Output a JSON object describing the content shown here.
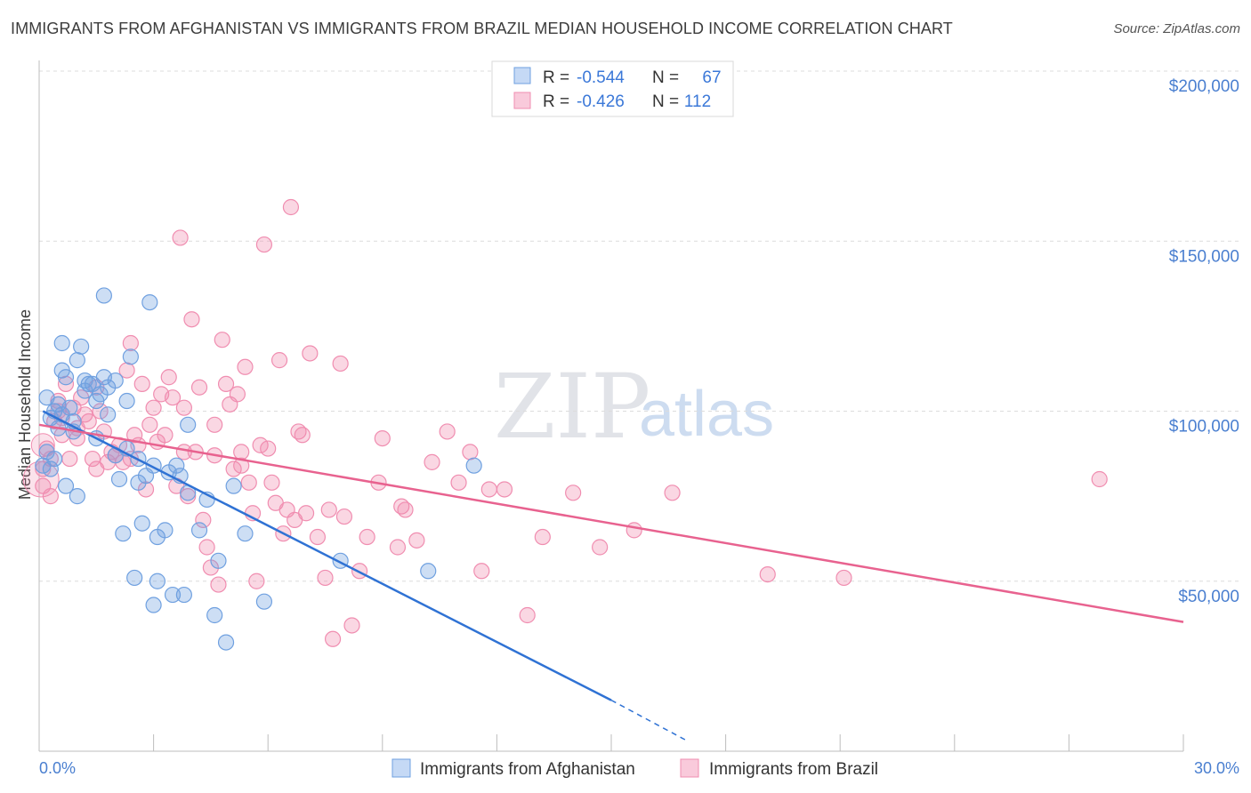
{
  "title": "IMMIGRANTS FROM AFGHANISTAN VS IMMIGRANTS FROM BRAZIL MEDIAN HOUSEHOLD INCOME CORRELATION CHART",
  "source": "Source: ZipAtlas.com",
  "watermark": {
    "zip": "ZIP",
    "atlas": "atlas"
  },
  "legend": {
    "rows": [
      {
        "r_label": "R = ",
        "r_value": "-0.544",
        "n_label": "N = ",
        "n_value": "67"
      },
      {
        "r_label": "R = ",
        "r_value": "-0.426",
        "n_label": "N = ",
        "n_value": "112"
      }
    ]
  },
  "colors": {
    "afghanistan": "#6fa0e0",
    "afghanistan_line": "#2f72d4",
    "brazil": "#f08db0",
    "brazil_line": "#e8628f",
    "tick": "#4a7fd0"
  },
  "chart_data": {
    "type": "scatter",
    "title": "IMMIGRANTS FROM AFGHANISTAN VS IMMIGRANTS FROM BRAZIL MEDIAN HOUSEHOLD INCOME CORRELATION CHART",
    "xlabel": "",
    "ylabel": "Median Household Income",
    "xlim": [
      0,
      30
    ],
    "ylim": [
      0,
      200000
    ],
    "x_tick_labels": [
      "0.0%",
      "30.0%"
    ],
    "y_ticks": [
      50000,
      100000,
      150000,
      200000
    ],
    "y_tick_labels": [
      "$50,000",
      "$100,000",
      "$150,000",
      "$200,000"
    ],
    "grid": true,
    "legend_position": "top-center",
    "series": [
      {
        "name": "Immigrants from Afghanistan",
        "r": -0.544,
        "n": 67,
        "trend": {
          "x": [
            0.1,
            15.0
          ],
          "y": [
            100000,
            15000
          ],
          "dashed_to": [
            17.0,
            3000
          ]
        },
        "points": [
          [
            0.2,
            104
          ],
          [
            0.3,
            98
          ],
          [
            0.3,
            83
          ],
          [
            0.4,
            100
          ],
          [
            0.5,
            95
          ],
          [
            0.6,
            112
          ],
          [
            0.6,
            120
          ],
          [
            0.7,
            110
          ],
          [
            0.7,
            78
          ],
          [
            0.8,
            101
          ],
          [
            0.9,
            94
          ],
          [
            1.0,
            115
          ],
          [
            1.0,
            75
          ],
          [
            1.1,
            119
          ],
          [
            1.2,
            106
          ],
          [
            1.3,
            108
          ],
          [
            1.4,
            108
          ],
          [
            1.5,
            103
          ],
          [
            1.6,
            105
          ],
          [
            1.7,
            134
          ],
          [
            1.7,
            110
          ],
          [
            1.8,
            107
          ],
          [
            2.0,
            87
          ],
          [
            2.1,
            80
          ],
          [
            2.2,
            64
          ],
          [
            2.3,
            103
          ],
          [
            2.4,
            116
          ],
          [
            2.5,
            51
          ],
          [
            2.6,
            79
          ],
          [
            2.7,
            67
          ],
          [
            2.8,
            81
          ],
          [
            2.9,
            132
          ],
          [
            3.0,
            43
          ],
          [
            3.0,
            84
          ],
          [
            3.1,
            50
          ],
          [
            3.1,
            63
          ],
          [
            3.3,
            65
          ],
          [
            3.4,
            82
          ],
          [
            3.5,
            46
          ],
          [
            3.6,
            84
          ],
          [
            3.7,
            81
          ],
          [
            3.8,
            46
          ],
          [
            3.9,
            76
          ],
          [
            3.9,
            96
          ],
          [
            4.2,
            65
          ],
          [
            4.4,
            74
          ],
          [
            4.6,
            40
          ],
          [
            4.7,
            56
          ],
          [
            4.9,
            32
          ],
          [
            5.1,
            78
          ],
          [
            5.4,
            64
          ],
          [
            5.9,
            44
          ],
          [
            7.9,
            56
          ],
          [
            10.2,
            53
          ],
          [
            11.4,
            84
          ],
          [
            0.2,
            88
          ],
          [
            0.4,
            86
          ],
          [
            0.6,
            99
          ],
          [
            0.9,
            97
          ],
          [
            1.2,
            109
          ],
          [
            1.5,
            92
          ],
          [
            2.0,
            109
          ],
          [
            2.3,
            89
          ],
          [
            1.8,
            99
          ],
          [
            0.5,
            102
          ],
          [
            0.1,
            84
          ],
          [
            2.6,
            86
          ]
        ]
      },
      {
        "name": "Immigrants from Brazil",
        "r": -0.426,
        "n": 112,
        "trend": {
          "x": [
            0.0,
            30.0
          ],
          "y": [
            96000,
            38000
          ]
        },
        "points": [
          [
            0.1,
            78
          ],
          [
            0.2,
            89
          ],
          [
            0.3,
            86
          ],
          [
            0.4,
            97
          ],
          [
            0.5,
            103
          ],
          [
            0.5,
            100
          ],
          [
            0.6,
            98
          ],
          [
            0.7,
            108
          ],
          [
            0.8,
            86
          ],
          [
            0.9,
            101
          ],
          [
            1.0,
            92
          ],
          [
            1.1,
            104
          ],
          [
            1.2,
            99
          ],
          [
            1.3,
            97
          ],
          [
            1.4,
            86
          ],
          [
            1.5,
            107
          ],
          [
            1.6,
            100
          ],
          [
            1.7,
            94
          ],
          [
            1.8,
            85
          ],
          [
            1.9,
            88
          ],
          [
            2.0,
            87
          ],
          [
            2.1,
            90
          ],
          [
            2.2,
            85
          ],
          [
            2.3,
            112
          ],
          [
            2.4,
            86
          ],
          [
            2.5,
            93
          ],
          [
            2.6,
            90
          ],
          [
            2.7,
            108
          ],
          [
            2.8,
            77
          ],
          [
            2.9,
            96
          ],
          [
            3.0,
            101
          ],
          [
            3.1,
            91
          ],
          [
            3.2,
            105
          ],
          [
            3.3,
            93
          ],
          [
            3.4,
            110
          ],
          [
            3.5,
            104
          ],
          [
            3.6,
            78
          ],
          [
            3.7,
            151
          ],
          [
            3.8,
            101
          ],
          [
            3.9,
            75
          ],
          [
            4.0,
            127
          ],
          [
            4.1,
            88
          ],
          [
            4.2,
            107
          ],
          [
            4.3,
            68
          ],
          [
            4.4,
            60
          ],
          [
            4.5,
            54
          ],
          [
            4.6,
            96
          ],
          [
            4.7,
            49
          ],
          [
            4.8,
            121
          ],
          [
            4.9,
            108
          ],
          [
            5.0,
            102
          ],
          [
            5.1,
            83
          ],
          [
            5.2,
            105
          ],
          [
            5.3,
            88
          ],
          [
            5.4,
            113
          ],
          [
            5.5,
            79
          ],
          [
            5.6,
            70
          ],
          [
            5.7,
            50
          ],
          [
            5.8,
            90
          ],
          [
            5.9,
            149
          ],
          [
            6.0,
            89
          ],
          [
            6.1,
            79
          ],
          [
            6.2,
            73
          ],
          [
            6.3,
            115
          ],
          [
            6.4,
            64
          ],
          [
            6.5,
            71
          ],
          [
            6.6,
            160
          ],
          [
            6.7,
            68
          ],
          [
            6.8,
            94
          ],
          [
            6.9,
            93
          ],
          [
            7.1,
            117
          ],
          [
            7.3,
            63
          ],
          [
            7.5,
            51
          ],
          [
            7.6,
            71
          ],
          [
            7.7,
            33
          ],
          [
            7.9,
            114
          ],
          [
            8.0,
            69
          ],
          [
            8.2,
            37
          ],
          [
            8.4,
            53
          ],
          [
            8.6,
            63
          ],
          [
            8.9,
            79
          ],
          [
            9.4,
            60
          ],
          [
            9.5,
            72
          ],
          [
            9.6,
            71
          ],
          [
            9.9,
            62
          ],
          [
            10.3,
            85
          ],
          [
            10.7,
            94
          ],
          [
            11.0,
            79
          ],
          [
            11.3,
            88
          ],
          [
            11.6,
            53
          ],
          [
            11.8,
            77
          ],
          [
            12.2,
            77
          ],
          [
            12.8,
            40
          ],
          [
            13.2,
            63
          ],
          [
            14.0,
            76
          ],
          [
            14.7,
            60
          ],
          [
            15.6,
            65
          ],
          [
            16.6,
            76
          ],
          [
            19.1,
            52
          ],
          [
            21.1,
            51
          ],
          [
            27.8,
            80
          ],
          [
            0.1,
            83
          ],
          [
            0.3,
            75
          ],
          [
            0.6,
            93
          ],
          [
            1.0,
            95
          ],
          [
            2.4,
            120
          ],
          [
            3.8,
            88
          ],
          [
            4.6,
            87
          ],
          [
            5.3,
            84
          ],
          [
            7.0,
            70
          ],
          [
            9.0,
            92
          ],
          [
            1.5,
            83
          ]
        ]
      }
    ]
  },
  "bottom_legend": [
    {
      "label": "Immigrants from Afghanistan"
    },
    {
      "label": "Immigrants from Brazil"
    }
  ]
}
